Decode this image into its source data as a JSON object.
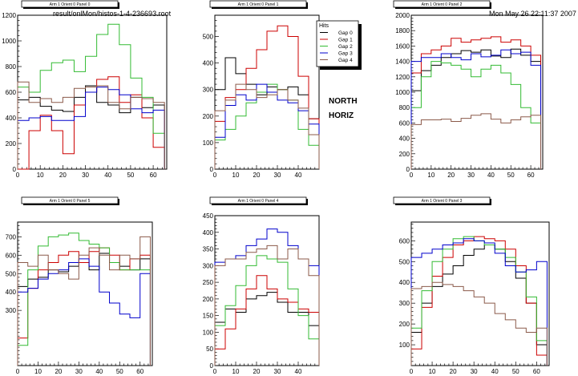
{
  "header": {
    "file_path": "result/onlMon/histos-1-4-236693.root",
    "date": "Mon May 26 22:11:37 2007"
  },
  "side_labels": [
    "NORTH",
    "HORIZ"
  ],
  "legend": {
    "title": "Hits",
    "entries": [
      "Gap 0",
      "Gap 1",
      "Gap 2",
      "Gap 3",
      "Gap 4"
    ]
  },
  "colors": {
    "Gap 0": "#000000",
    "Gap 1": "#cc0000",
    "Gap 2": "#33bb33",
    "Gap 3": "#0000cc",
    "Gap 4": "#8b5a4a"
  },
  "chart_data": [
    {
      "type": "line",
      "title": "Arm 1 Orient 0 Panel 0",
      "xlim": [
        0,
        66
      ],
      "ylim": [
        0,
        1200
      ],
      "xticks": [
        0,
        10,
        20,
        30,
        40,
        50,
        60
      ],
      "yticks": [
        0,
        200,
        400,
        600,
        800,
        1000,
        1200
      ],
      "series": [
        {
          "name": "Gap 0",
          "x": [
            0,
            5,
            10,
            15,
            20,
            25,
            30,
            35,
            40,
            45,
            50,
            55,
            60
          ],
          "values": [
            540,
            560,
            490,
            460,
            450,
            560,
            650,
            520,
            500,
            440,
            560,
            480,
            500
          ]
        },
        {
          "name": "Gap 1",
          "x": [
            0,
            5,
            10,
            15,
            20,
            25,
            30,
            35,
            40,
            45,
            50,
            55,
            60
          ],
          "values": [
            0,
            300,
            420,
            300,
            120,
            500,
            600,
            700,
            720,
            520,
            580,
            400,
            170
          ]
        },
        {
          "name": "Gap 2",
          "x": [
            0,
            5,
            10,
            15,
            20,
            25,
            30,
            35,
            40,
            45,
            50,
            55,
            60
          ],
          "values": [
            640,
            600,
            770,
            830,
            850,
            760,
            880,
            1050,
            1130,
            970,
            710,
            560,
            280
          ]
        },
        {
          "name": "Gap 3",
          "x": [
            0,
            5,
            10,
            15,
            20,
            25,
            30,
            35,
            40,
            45,
            50,
            55,
            60
          ],
          "values": [
            380,
            400,
            410,
            380,
            380,
            410,
            600,
            640,
            620,
            580,
            470,
            440,
            460
          ]
        },
        {
          "name": "Gap 4",
          "x": [
            0,
            5,
            10,
            15,
            20,
            25,
            30,
            35,
            40,
            45,
            50,
            55,
            60
          ],
          "values": [
            680,
            520,
            550,
            520,
            560,
            630,
            640,
            650,
            520,
            470,
            560,
            550,
            520
          ]
        }
      ]
    },
    {
      "type": "line",
      "title": "Arm 1 Orient 0 Panel 1",
      "xlim": [
        0,
        50
      ],
      "ylim": [
        0,
        580
      ],
      "xticks": [
        0,
        10,
        20,
        30,
        40
      ],
      "yticks": [
        0,
        100,
        200,
        300,
        400,
        500
      ],
      "series": [
        {
          "name": "Gap 0",
          "x": [
            0,
            5,
            10,
            15,
            20,
            25,
            30,
            35,
            40,
            45
          ],
          "values": [
            300,
            420,
            360,
            320,
            280,
            310,
            300,
            310,
            280,
            190
          ]
        },
        {
          "name": "Gap 1",
          "x": [
            0,
            5,
            10,
            15,
            20,
            25,
            30,
            35,
            40,
            45
          ],
          "values": [
            180,
            270,
            300,
            380,
            450,
            520,
            540,
            500,
            350,
            190
          ]
        },
        {
          "name": "Gap 2",
          "x": [
            0,
            5,
            10,
            15,
            20,
            25,
            30,
            35,
            40,
            45
          ],
          "values": [
            110,
            150,
            200,
            250,
            290,
            320,
            300,
            260,
            150,
            90
          ]
        },
        {
          "name": "Gap 3",
          "x": [
            0,
            5,
            10,
            15,
            20,
            25,
            30,
            35,
            40,
            45
          ],
          "values": [
            120,
            240,
            280,
            260,
            320,
            290,
            260,
            250,
            220,
            170
          ]
        },
        {
          "name": "Gap 4",
          "x": [
            0,
            5,
            10,
            15,
            20,
            25,
            30,
            35,
            40,
            45
          ],
          "values": [
            220,
            260,
            320,
            300,
            270,
            280,
            300,
            260,
            230,
            130
          ]
        }
      ]
    },
    {
      "type": "line",
      "title": "Arm 1 Orient 0 Panel 2",
      "xlim": [
        0,
        66
      ],
      "ylim": [
        0,
        2000
      ],
      "xticks": [
        0,
        10,
        20,
        30,
        40,
        50,
        60
      ],
      "yticks": [
        0,
        200,
        400,
        600,
        800,
        1000,
        1200,
        1400,
        1600,
        1800,
        2000
      ],
      "series": [
        {
          "name": "Gap 0",
          "x": [
            0,
            5,
            10,
            15,
            20,
            25,
            30,
            35,
            40,
            45,
            50,
            55,
            60
          ],
          "values": [
            1020,
            1280,
            1350,
            1450,
            1500,
            1540,
            1520,
            1550,
            1470,
            1450,
            1560,
            1480,
            1400
          ]
        },
        {
          "name": "Gap 1",
          "x": [
            0,
            5,
            10,
            15,
            20,
            25,
            30,
            35,
            40,
            45,
            50,
            55,
            60
          ],
          "values": [
            1250,
            1500,
            1550,
            1600,
            1700,
            1650,
            1680,
            1700,
            1720,
            1650,
            1680,
            1600,
            1480
          ]
        },
        {
          "name": "Gap 2",
          "x": [
            0,
            5,
            10,
            15,
            20,
            25,
            30,
            35,
            40,
            45,
            50,
            55,
            60
          ],
          "values": [
            800,
            1200,
            1400,
            1380,
            1350,
            1300,
            1200,
            1300,
            1350,
            1250,
            1100,
            800,
            600
          ]
        },
        {
          "name": "Gap 3",
          "x": [
            0,
            5,
            10,
            15,
            20,
            25,
            30,
            35,
            40,
            45,
            50,
            55,
            60
          ],
          "values": [
            1400,
            1450,
            1450,
            1500,
            1450,
            1420,
            1500,
            1460,
            1480,
            1550,
            1500,
            1520,
            1350
          ]
        },
        {
          "name": "Gap 4",
          "x": [
            0,
            5,
            10,
            15,
            20,
            25,
            30,
            35,
            40,
            45,
            50,
            55,
            60
          ],
          "values": [
            580,
            640,
            640,
            650,
            620,
            660,
            700,
            720,
            650,
            600,
            640,
            680,
            700
          ]
        }
      ]
    },
    {
      "type": "line",
      "title": "Arm 1 Orient 0 Panel 5",
      "xlim": [
        0,
        66
      ],
      "ylim": [
        0,
        780
      ],
      "xticks": [
        0,
        10,
        20,
        30,
        40,
        50,
        60
      ],
      "yticks": [
        300,
        400,
        500,
        600,
        700
      ],
      "series": [
        {
          "name": "Gap 0",
          "x": [
            0,
            5,
            10,
            15,
            20,
            25,
            30,
            35,
            40,
            45,
            50,
            55,
            60
          ],
          "values": [
            430,
            470,
            480,
            520,
            510,
            540,
            560,
            520,
            610,
            560,
            540,
            520,
            580
          ]
        },
        {
          "name": "Gap 1",
          "x": [
            0,
            5,
            10,
            15,
            20,
            25,
            30,
            35,
            40,
            45,
            50,
            55,
            60
          ],
          "values": [
            150,
            420,
            520,
            560,
            600,
            620,
            560,
            620,
            640,
            600,
            520,
            580,
            600
          ]
        },
        {
          "name": "Gap 2",
          "x": [
            0,
            5,
            10,
            15,
            20,
            25,
            30,
            35,
            40,
            45,
            50,
            55,
            60
          ],
          "values": [
            110,
            520,
            650,
            700,
            710,
            720,
            680,
            660,
            640,
            560,
            520,
            520,
            520
          ]
        },
        {
          "name": "Gap 3",
          "x": [
            0,
            5,
            10,
            15,
            20,
            25,
            30,
            35,
            40,
            45,
            50,
            55,
            60
          ],
          "values": [
            400,
            420,
            470,
            500,
            520,
            560,
            580,
            540,
            400,
            340,
            280,
            260,
            500
          ]
        },
        {
          "name": "Gap 4",
          "x": [
            0,
            5,
            10,
            15,
            20,
            25,
            30,
            35,
            40,
            45,
            50,
            55,
            60
          ],
          "values": [
            560,
            540,
            600,
            520,
            500,
            470,
            600,
            640,
            600,
            520,
            600,
            580,
            700
          ]
        }
      ]
    },
    {
      "type": "line",
      "title": "Arm 1 Orient 0 Panel 4",
      "xlim": [
        0,
        50
      ],
      "ylim": [
        0,
        450
      ],
      "xticks": [
        0,
        10,
        20,
        30,
        40
      ],
      "yticks": [
        0,
        50,
        100,
        150,
        200,
        250,
        300,
        350,
        400,
        450
      ],
      "series": [
        {
          "name": "Gap 0",
          "x": [
            0,
            5,
            10,
            15,
            20,
            25,
            30,
            35,
            40,
            45
          ],
          "values": [
            130,
            170,
            160,
            200,
            210,
            220,
            190,
            160,
            160,
            120
          ]
        },
        {
          "name": "Gap 1",
          "x": [
            0,
            5,
            10,
            15,
            20,
            25,
            30,
            35,
            40,
            45
          ],
          "values": [
            50,
            110,
            170,
            230,
            270,
            230,
            200,
            190,
            170,
            160
          ]
        },
        {
          "name": "Gap 2",
          "x": [
            0,
            5,
            10,
            15,
            20,
            25,
            30,
            35,
            40,
            45
          ],
          "values": [
            120,
            180,
            240,
            300,
            330,
            320,
            310,
            230,
            150,
            80
          ]
        },
        {
          "name": "Gap 3",
          "x": [
            0,
            5,
            10,
            15,
            20,
            25,
            30,
            35,
            40,
            45
          ],
          "values": [
            310,
            320,
            330,
            360,
            380,
            410,
            400,
            360,
            320,
            300
          ]
        },
        {
          "name": "Gap 4",
          "x": [
            0,
            5,
            10,
            15,
            20,
            25,
            30,
            35,
            40,
            45
          ],
          "values": [
            300,
            320,
            320,
            340,
            350,
            360,
            320,
            350,
            320,
            270
          ]
        }
      ]
    },
    {
      "type": "line",
      "title": "Arm 1 Orient 0 Panel 3",
      "xlim": [
        0,
        66
      ],
      "ylim": [
        0,
        690
      ],
      "xticks": [
        0,
        10,
        20,
        30,
        40,
        50,
        60
      ],
      "yticks": [
        100,
        200,
        300,
        400,
        500,
        600
      ],
      "series": [
        {
          "name": "Gap 0",
          "x": [
            0,
            5,
            10,
            15,
            20,
            25,
            30,
            35,
            40,
            45,
            50,
            55,
            60
          ],
          "values": [
            160,
            300,
            380,
            440,
            480,
            530,
            560,
            580,
            560,
            500,
            420,
            300,
            100
          ]
        },
        {
          "name": "Gap 1",
          "x": [
            0,
            5,
            10,
            15,
            20,
            25,
            30,
            35,
            40,
            45,
            50,
            55,
            60
          ],
          "values": [
            80,
            280,
            430,
            520,
            580,
            600,
            620,
            610,
            600,
            560,
            480,
            300,
            50
          ]
        },
        {
          "name": "Gap 2",
          "x": [
            0,
            5,
            10,
            15,
            20,
            25,
            30,
            35,
            40,
            45,
            50,
            55,
            60
          ],
          "values": [
            180,
            360,
            500,
            560,
            610,
            620,
            600,
            580,
            560,
            520,
            450,
            330,
            120
          ]
        },
        {
          "name": "Gap 3",
          "x": [
            0,
            5,
            10,
            15,
            20,
            25,
            30,
            35,
            40,
            45,
            50,
            55,
            60
          ],
          "values": [
            520,
            540,
            560,
            580,
            590,
            610,
            600,
            590,
            540,
            480,
            450,
            460,
            500
          ]
        },
        {
          "name": "Gap 4",
          "x": [
            0,
            5,
            10,
            15,
            20,
            25,
            30,
            35,
            40,
            45,
            50,
            55,
            60
          ],
          "values": [
            370,
            380,
            400,
            390,
            380,
            360,
            330,
            300,
            250,
            220,
            180,
            160,
            180
          ]
        }
      ]
    }
  ]
}
